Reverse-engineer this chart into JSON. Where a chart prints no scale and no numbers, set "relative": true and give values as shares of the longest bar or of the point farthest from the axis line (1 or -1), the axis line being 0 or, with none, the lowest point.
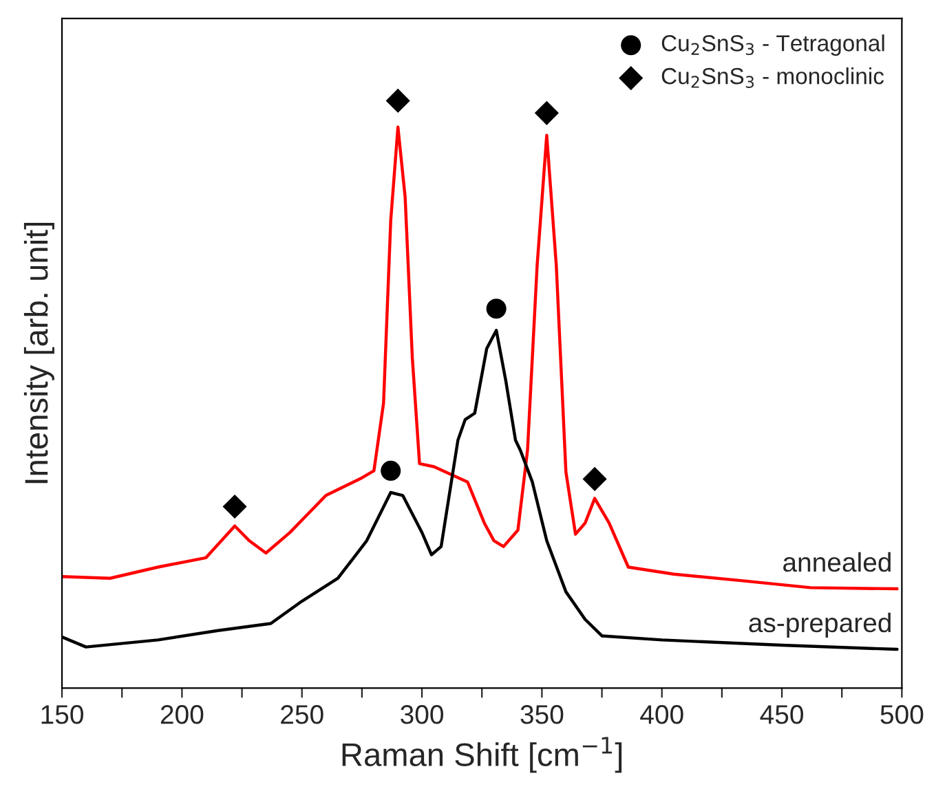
{
  "chart_data": {
    "type": "line",
    "relative": true,
    "xlabel": "Raman Shift [cm$^{−1}$]",
    "ylabel": "Intensity [arb. unit]",
    "xlim": [
      150,
      500
    ],
    "xticks": [
      150,
      {
        "value": 175,
        "label": null
      },
      200,
      {
        "value": 225,
        "label": null
      },
      250,
      {
        "value": 275,
        "label": null
      },
      300,
      {
        "value": 325,
        "label": null
      },
      350,
      {
        "value": 375,
        "label": null
      },
      400,
      {
        "value": 425,
        "label": null
      },
      450,
      {
        "value": 475,
        "label": null
      },
      500
    ],
    "grid": false,
    "legend": "top right",
    "tick_labels": "x",
    "series": [
      {
        "name": "annealed",
        "color": "#ff0000",
        "x": [
          150,
          170,
          190,
          210,
          222,
          228,
          235,
          245,
          260,
          275,
          280,
          284,
          287,
          290,
          293,
          296,
          299,
          305,
          319,
          326,
          330,
          334,
          340,
          344,
          348,
          352,
          356,
          360,
          364,
          368,
          372,
          378,
          386,
          405,
          433,
          462,
          498
        ],
        "values": [
          0.19,
          0.187,
          0.206,
          0.222,
          0.276,
          0.251,
          0.23,
          0.265,
          0.328,
          0.358,
          0.37,
          0.485,
          0.796,
          0.955,
          0.836,
          0.562,
          0.382,
          0.377,
          0.351,
          0.281,
          0.251,
          0.241,
          0.269,
          0.405,
          0.719,
          0.941,
          0.719,
          0.368,
          0.262,
          0.281,
          0.323,
          0.281,
          0.206,
          0.194,
          0.183,
          0.171,
          0.169
        ]
      },
      {
        "name": "as-prepared",
        "color": "#000000",
        "x": [
          150,
          160,
          190,
          215,
          237,
          250,
          265,
          277,
          287,
          292,
          300,
          304,
          308,
          315,
          318,
          322,
          327,
          331,
          335,
          339,
          341,
          346,
          352,
          360,
          368,
          375,
          400,
          450,
          498
        ],
        "values": [
          0.087,
          0.07,
          0.082,
          0.098,
          0.11,
          0.148,
          0.187,
          0.251,
          0.333,
          0.328,
          0.265,
          0.227,
          0.241,
          0.422,
          0.457,
          0.468,
          0.578,
          0.609,
          0.522,
          0.422,
          0.405,
          0.351,
          0.251,
          0.164,
          0.117,
          0.089,
          0.082,
          0.073,
          0.066
        ]
      },
      {
        "name": "Cu$_{2}$SnS$_{3}$ - Tetragonal",
        "type": "scatter",
        "marker": "circle",
        "color": "#000000",
        "x": [
          287,
          331
        ],
        "values": [
          0.37,
          0.646
        ]
      },
      {
        "name": "Cu$_{2}$SnS$_{3}$ - monoclinic",
        "type": "scatter",
        "marker": "diamond",
        "color": "#000000",
        "x": [
          222,
          290,
          352,
          372
        ],
        "values": [
          0.309,
          1.0,
          0.979,
          0.356
        ]
      }
    ]
  }
}
